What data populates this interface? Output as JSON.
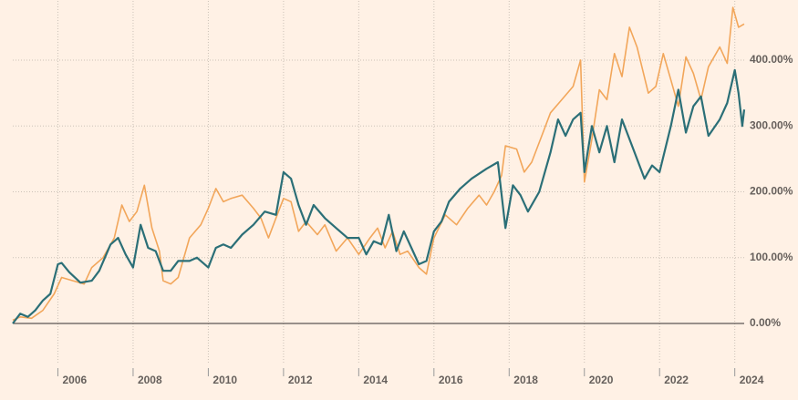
{
  "chart_data": {
    "type": "line",
    "xlim": [
      2004.8,
      2024.25
    ],
    "xticks": [
      2006,
      2008,
      2010,
      2012,
      2014,
      2016,
      2018,
      2020,
      2022,
      2024
    ],
    "ylim": [
      -60,
      490
    ],
    "yticks": [
      {
        "value": 0,
        "label": "0.00%"
      },
      {
        "value": 100,
        "label": "100.00%"
      },
      {
        "value": 200,
        "label": "200.00%"
      },
      {
        "value": 300,
        "label": "300.00%"
      },
      {
        "value": 400,
        "label": "400.00%"
      }
    ],
    "grid": true,
    "series": [
      {
        "color": "#f2a65a",
        "x": [
          2004.8,
          2005.0,
          2005.3,
          2005.6,
          2005.9,
          2006.1,
          2006.4,
          2006.7,
          2006.9,
          2007.2,
          2007.5,
          2007.7,
          2007.9,
          2008.1,
          2008.3,
          2008.5,
          2008.7,
          2008.8,
          2009.0,
          2009.2,
          2009.5,
          2009.8,
          2010.0,
          2010.2,
          2010.4,
          2010.6,
          2010.9,
          2011.2,
          2011.4,
          2011.6,
          2011.8,
          2012.0,
          2012.2,
          2012.4,
          2012.6,
          2012.9,
          2013.1,
          2013.4,
          2013.7,
          2014.0,
          2014.3,
          2014.5,
          2014.7,
          2014.9,
          2015.1,
          2015.3,
          2015.6,
          2015.8,
          2016.0,
          2016.3,
          2016.6,
          2016.9,
          2017.2,
          2017.4,
          2017.6,
          2017.8,
          2017.9,
          2018.2,
          2018.4,
          2018.6,
          2018.9,
          2019.1,
          2019.4,
          2019.7,
          2019.9,
          2020.0,
          2020.2,
          2020.4,
          2020.6,
          2020.8,
          2021.0,
          2021.2,
          2021.4,
          2021.7,
          2021.9,
          2022.1,
          2022.3,
          2022.5,
          2022.7,
          2022.9,
          2023.1,
          2023.3,
          2023.6,
          2023.8,
          2023.95,
          2024.1,
          2024.25
        ],
        "values": [
          5,
          10,
          8,
          20,
          45,
          70,
          65,
          60,
          85,
          100,
          130,
          180,
          155,
          170,
          210,
          145,
          110,
          65,
          60,
          70,
          130,
          150,
          175,
          205,
          185,
          190,
          195,
          175,
          160,
          130,
          160,
          190,
          185,
          140,
          155,
          135,
          150,
          110,
          130,
          105,
          130,
          145,
          115,
          140,
          105,
          110,
          85,
          75,
          130,
          165,
          150,
          175,
          195,
          180,
          200,
          225,
          270,
          265,
          230,
          245,
          290,
          320,
          340,
          360,
          400,
          215,
          280,
          355,
          340,
          410,
          375,
          450,
          420,
          350,
          360,
          410,
          370,
          330,
          405,
          380,
          340,
          390,
          420,
          395,
          480,
          450,
          455
        ]
      },
      {
        "color": "#2b6f77",
        "x": [
          2004.8,
          2005.0,
          2005.2,
          2005.4,
          2005.6,
          2005.8,
          2006.0,
          2006.1,
          2006.3,
          2006.6,
          2006.9,
          2007.1,
          2007.4,
          2007.6,
          2007.8,
          2008.0,
          2008.2,
          2008.4,
          2008.6,
          2008.8,
          2009.0,
          2009.2,
          2009.5,
          2009.7,
          2010.0,
          2010.2,
          2010.4,
          2010.6,
          2010.9,
          2011.2,
          2011.5,
          2011.8,
          2012.0,
          2012.2,
          2012.4,
          2012.6,
          2012.8,
          2013.1,
          2013.4,
          2013.7,
          2014.0,
          2014.2,
          2014.4,
          2014.6,
          2014.8,
          2015.0,
          2015.2,
          2015.4,
          2015.6,
          2015.8,
          2016.0,
          2016.2,
          2016.4,
          2016.7,
          2017.0,
          2017.4,
          2017.7,
          2017.9,
          2018.1,
          2018.3,
          2018.5,
          2018.8,
          2019.1,
          2019.3,
          2019.5,
          2019.7,
          2019.9,
          2020.0,
          2020.2,
          2020.4,
          2020.6,
          2020.8,
          2021.0,
          2021.3,
          2021.6,
          2021.8,
          2022.0,
          2022.3,
          2022.5,
          2022.7,
          2022.9,
          2023.1,
          2023.3,
          2023.6,
          2023.8,
          2024.0,
          2024.1,
          2024.2,
          2024.25
        ],
        "values": [
          0,
          15,
          10,
          20,
          35,
          45,
          90,
          92,
          78,
          62,
          65,
          80,
          120,
          130,
          105,
          85,
          150,
          115,
          110,
          80,
          80,
          95,
          95,
          100,
          85,
          115,
          120,
          115,
          135,
          150,
          170,
          165,
          230,
          220,
          180,
          150,
          180,
          160,
          145,
          130,
          130,
          105,
          125,
          120,
          165,
          110,
          140,
          115,
          90,
          95,
          140,
          155,
          185,
          205,
          220,
          235,
          245,
          145,
          210,
          195,
          170,
          200,
          260,
          310,
          285,
          310,
          320,
          230,
          300,
          260,
          300,
          245,
          310,
          265,
          220,
          240,
          230,
          300,
          355,
          290,
          330,
          345,
          285,
          310,
          335,
          385,
          350,
          300,
          325
        ]
      }
    ]
  }
}
